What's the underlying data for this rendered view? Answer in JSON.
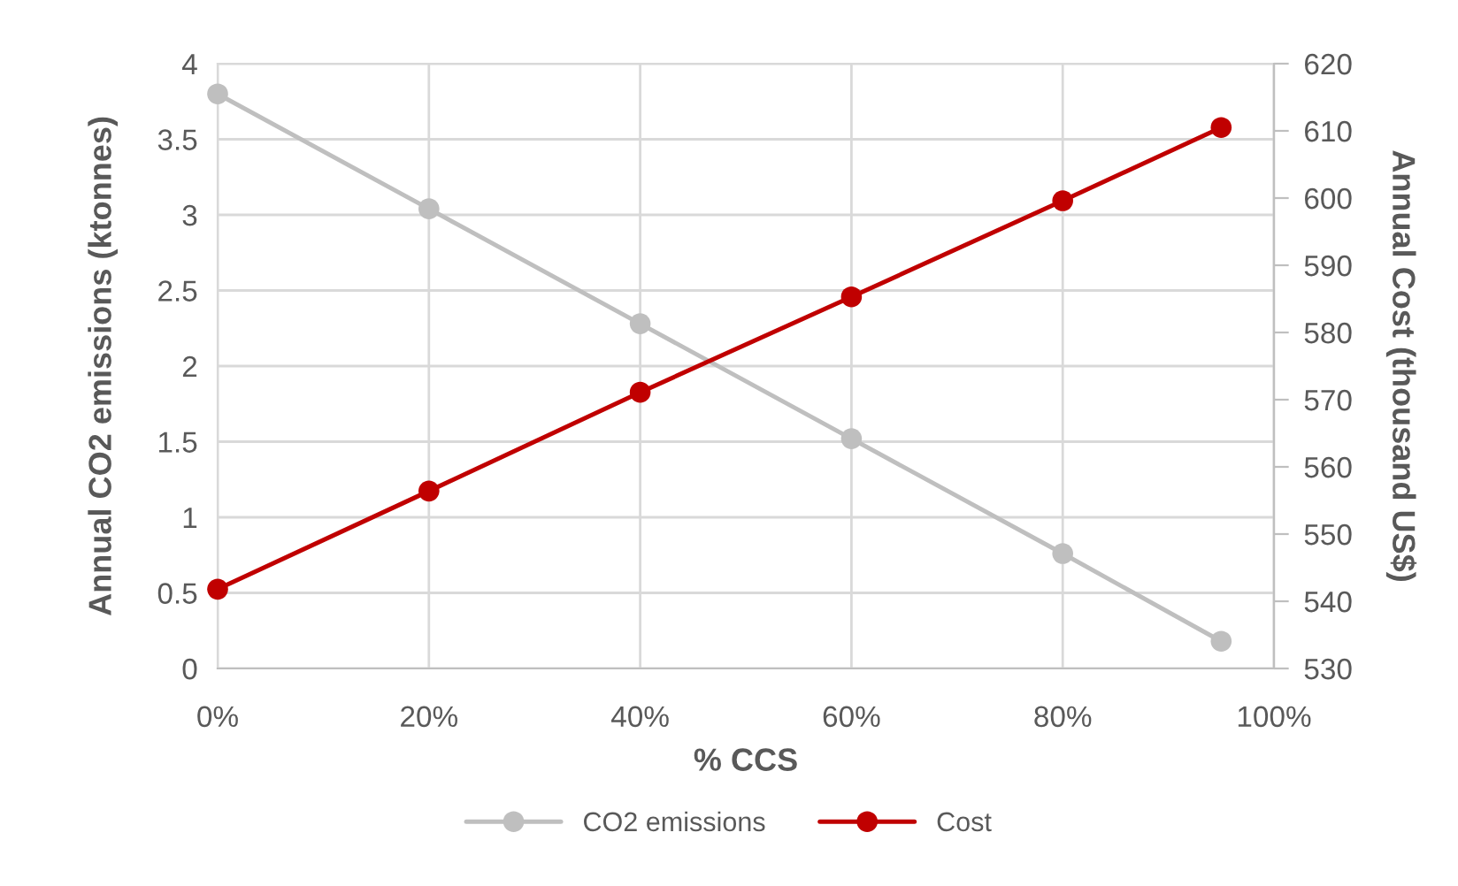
{
  "chart_data": {
    "type": "line",
    "xlabel": "% CCS",
    "ylabel": "Annual CO2 emissions (ktonnes)",
    "y2label": "Annual Cost (thousand US$)",
    "x": [
      0,
      20,
      40,
      60,
      80,
      95
    ],
    "series": [
      {
        "name": "CO2 emissions",
        "color": "#bfbfbf",
        "values": [
          3.8,
          3.04,
          2.28,
          1.52,
          0.76,
          0.18
        ]
      },
      {
        "name": "Cost",
        "color": "#c00000",
        "axis": "y2",
        "values": [
          541.8,
          556.4,
          571.1,
          585.3,
          599.6,
          610.5
        ]
      }
    ],
    "xlim": [
      0,
      100
    ],
    "xticks": [
      {
        "value": 0,
        "label": "0%"
      },
      {
        "value": 20,
        "label": "20%"
      },
      {
        "value": 40,
        "label": "40%"
      },
      {
        "value": 60,
        "label": "60%"
      },
      {
        "value": 80,
        "label": "80%"
      },
      {
        "value": 100,
        "label": "100%"
      }
    ],
    "ylim": [
      0,
      4
    ],
    "yticks": [
      0,
      0.5,
      1,
      1.5,
      2,
      2.5,
      3,
      3.5,
      4
    ],
    "y2lim": [
      530,
      620
    ],
    "y2ticks": [
      530,
      540,
      550,
      560,
      570,
      580,
      590,
      600,
      610,
      620
    ],
    "grid": true,
    "legend": "bottom",
    "marker": "circle",
    "line_style": "solid"
  }
}
